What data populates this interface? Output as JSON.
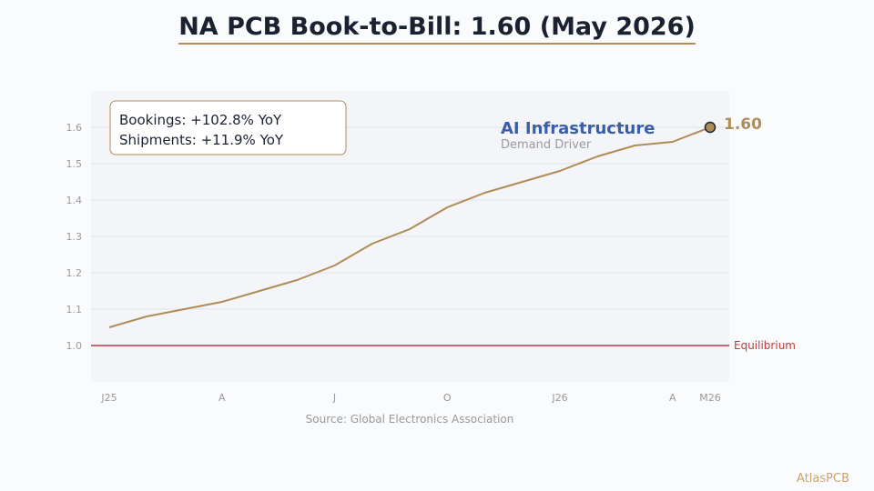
{
  "title": "NA PCB Book-to-Bill: 1.60 (May 2026)",
  "brand": "AtlasPCB",
  "colors": {
    "line": "#b08d57",
    "equilibrium": "#c0393b",
    "annotation_title": "#3b5ea8",
    "annotation_sub": "#9a9a9a",
    "plot_bg": "#f4f5f8"
  },
  "chart_data": {
    "type": "line",
    "x": [
      "2025-01",
      "2025-02",
      "2025-03",
      "2025-04",
      "2025-05",
      "2025-06",
      "2025-07",
      "2025-08",
      "2025-09",
      "2025-10",
      "2025-11",
      "2025-12",
      "2026-01",
      "2026-02",
      "2026-03",
      "2026-04",
      "2026-05"
    ],
    "values": [
      1.05,
      1.08,
      1.1,
      1.12,
      1.15,
      1.18,
      1.22,
      1.28,
      1.32,
      1.38,
      1.42,
      1.45,
      1.48,
      1.52,
      1.55,
      1.56,
      1.6
    ],
    "x_tick_labels": [
      {
        "x": "2025-01",
        "label": "J25"
      },
      {
        "x": "2025-04",
        "label": "A"
      },
      {
        "x": "2025-07",
        "label": "J"
      },
      {
        "x": "2025-10",
        "label": "O"
      },
      {
        "x": "2026-01",
        "label": "J26"
      },
      {
        "x": "2026-04",
        "label": "A"
      },
      {
        "x": "2026-05",
        "label": "M26"
      }
    ],
    "y_ticks": [
      1.0,
      1.1,
      1.2,
      1.3,
      1.4,
      1.5,
      1.6
    ],
    "ylim": [
      0.9,
      1.7
    ],
    "grid": true,
    "reference_line": {
      "y": 1.0,
      "label": "Equilibrium"
    },
    "last_value_label": "1.60",
    "annotation": {
      "title": "AI Infrastructure",
      "subtitle": "Demand Driver"
    },
    "stats_box": [
      "Bookings: +102.8% YoY",
      "Shipments: +11.9% YoY"
    ],
    "source": "Source: Global Electronics Association"
  }
}
